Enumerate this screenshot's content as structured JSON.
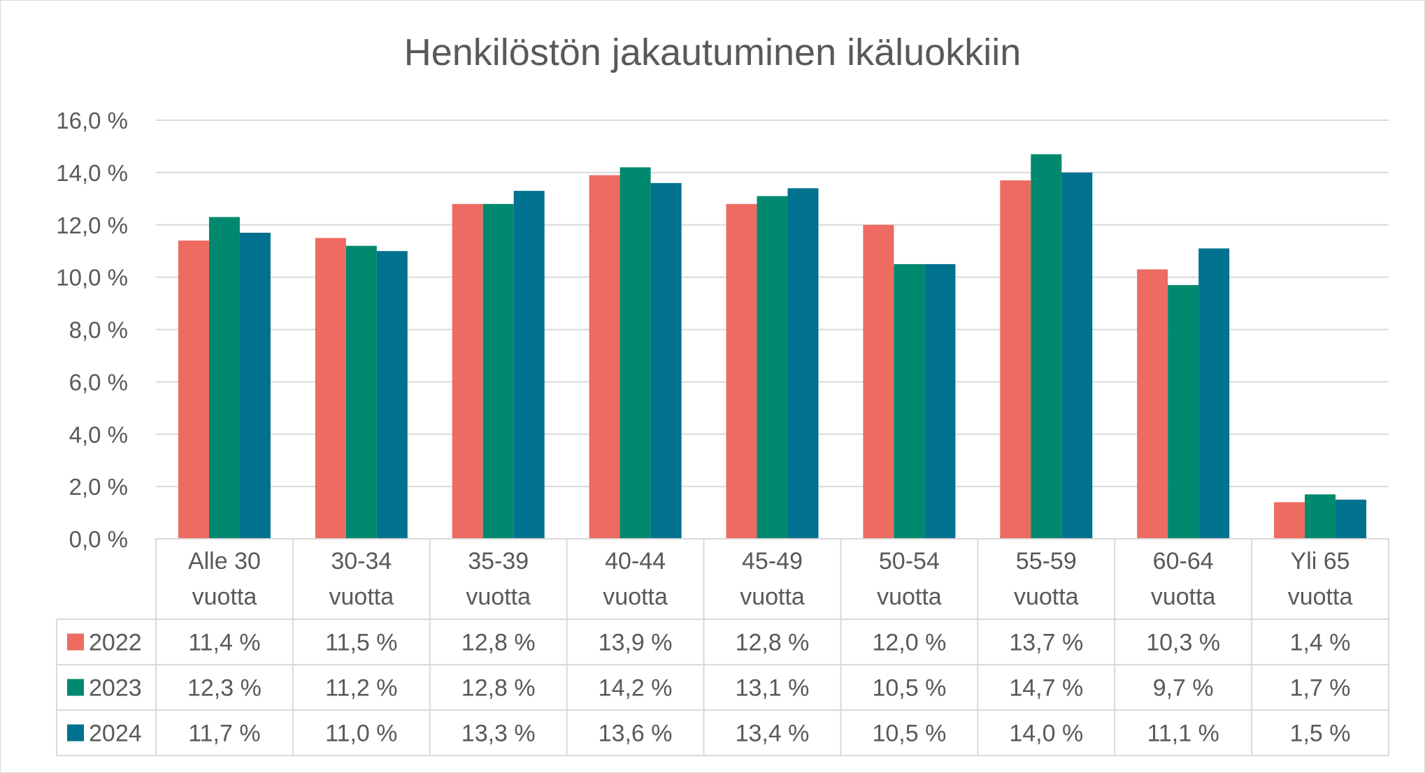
{
  "chart_data": {
    "type": "bar",
    "title": "Henkilöstön jakautuminen ikäluokkiin",
    "categories": [
      [
        "Alle 30",
        "vuotta"
      ],
      [
        "30-34",
        "vuotta"
      ],
      [
        "35-39",
        "vuotta"
      ],
      [
        "40-44",
        "vuotta"
      ],
      [
        "45-49",
        "vuotta"
      ],
      [
        "50-54",
        "vuotta"
      ],
      [
        "55-59",
        "vuotta"
      ],
      [
        "60-64",
        "vuotta"
      ],
      [
        "Yli 65",
        "vuotta"
      ]
    ],
    "series": [
      {
        "name": "2022",
        "color": "#ee6b61",
        "values": [
          11.4,
          11.5,
          12.8,
          13.9,
          12.8,
          12.0,
          13.7,
          10.3,
          1.4
        ],
        "labels": [
          "11,4 %",
          "11,5 %",
          "12,8 %",
          "13,9 %",
          "12,8 %",
          "12,0 %",
          "13,7 %",
          "10,3 %",
          "1,4 %"
        ]
      },
      {
        "name": "2023",
        "color": "#00896e",
        "values": [
          12.3,
          11.2,
          12.8,
          14.2,
          13.1,
          10.5,
          14.7,
          9.7,
          1.7
        ],
        "labels": [
          "12,3 %",
          "11,2 %",
          "12,8 %",
          "14,2 %",
          "13,1 %",
          "10,5 %",
          "14,7 %",
          "9,7 %",
          "1,7 %"
        ]
      },
      {
        "name": "2024",
        "color": "#00728f",
        "values": [
          11.7,
          11.0,
          13.3,
          13.6,
          13.4,
          10.5,
          14.0,
          11.1,
          1.5
        ],
        "labels": [
          "11,7 %",
          "11,0 %",
          "13,3 %",
          "13,6 %",
          "13,4 %",
          "10,5 %",
          "14,0 %",
          "11,1 %",
          "1,5 %"
        ]
      }
    ],
    "ylim": [
      0,
      16
    ],
    "yticks": [
      0,
      2,
      4,
      6,
      8,
      10,
      12,
      14,
      16
    ],
    "ytick_labels": [
      "0,0 %",
      "2,0 %",
      "4,0 %",
      "6,0 %",
      "8,0 %",
      "10,0 %",
      "12,0 %",
      "14,0 %",
      "16,0 %"
    ],
    "grid": true,
    "legend": "data-table-left"
  }
}
